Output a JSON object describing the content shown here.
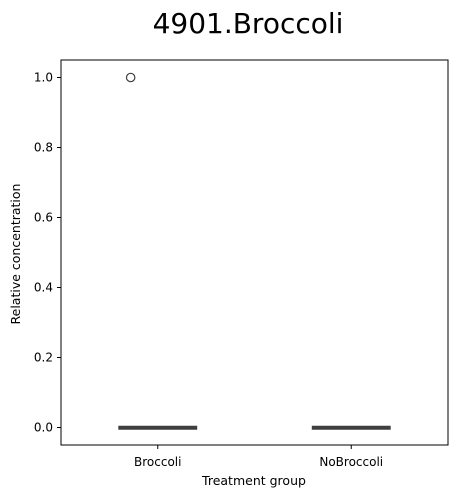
{
  "chart_data": {
    "type": "box",
    "title": "4901.Broccoli",
    "xlabel": "Treatment group",
    "ylabel": "Relative concentration",
    "categories": [
      "Broccoli",
      "NoBroccoli"
    ],
    "ylim": [
      -0.05,
      1.05
    ],
    "yticks": [
      0.0,
      0.2,
      0.4,
      0.6,
      0.8,
      1.0
    ],
    "ytick_labels": [
      "0.0",
      "0.2",
      "0.4",
      "0.6",
      "0.8",
      "1.0"
    ],
    "boxes": [
      {
        "category": "Broccoli",
        "whisker_low": 0.0,
        "q1": 0.0,
        "median": 0.0,
        "q3": 0.0,
        "whisker_high": 0.0,
        "outliers": [
          1.0
        ]
      },
      {
        "category": "NoBroccoli",
        "whisker_low": 0.0,
        "q1": 0.0,
        "median": 0.0,
        "q3": 0.0,
        "whisker_high": 0.0,
        "outliers": []
      }
    ],
    "box_color": "#3f3f3f",
    "grid": false,
    "legend": "none"
  }
}
